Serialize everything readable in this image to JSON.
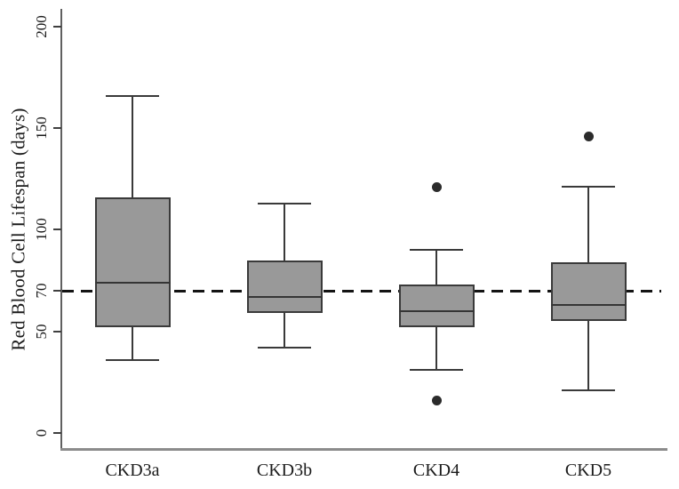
{
  "chart_data": {
    "type": "boxplot",
    "title": "",
    "xlabel": "",
    "ylabel": "Red Blood Cell Lifespan (days)",
    "categories": [
      "CKD3a",
      "CKD3b",
      "CKD4",
      "CKD5"
    ],
    "yticks": [
      0,
      50,
      70,
      100,
      150,
      200
    ],
    "ylim": [
      0,
      208
    ],
    "grid": false,
    "legend": "none",
    "reference_line": {
      "value": 70,
      "style": "dashed",
      "color": "#141414"
    },
    "series": [
      {
        "name": "CKD3a",
        "whisker_low": 36,
        "q1": 52,
        "median": 74,
        "q3": 116,
        "whisker_high": 166,
        "outliers": []
      },
      {
        "name": "CKD3b",
        "whisker_low": 42,
        "q1": 59,
        "median": 67,
        "q3": 85,
        "whisker_high": 113,
        "outliers": []
      },
      {
        "name": "CKD4",
        "whisker_low": 31,
        "q1": 52,
        "median": 60,
        "q3": 73,
        "whisker_high": 90,
        "outliers": [
          121,
          16
        ]
      },
      {
        "name": "CKD5",
        "whisker_low": 21,
        "q1": 55,
        "median": 63,
        "q3": 84,
        "whisker_high": 121,
        "outliers": [
          146
        ]
      }
    ],
    "colors": {
      "box_fill": "#999999",
      "box_stroke": "#3a3a3a",
      "median": "#353535",
      "outlier": "#2b2b2b",
      "reference_line": "#141414",
      "text": "#1b1b1b"
    }
  }
}
